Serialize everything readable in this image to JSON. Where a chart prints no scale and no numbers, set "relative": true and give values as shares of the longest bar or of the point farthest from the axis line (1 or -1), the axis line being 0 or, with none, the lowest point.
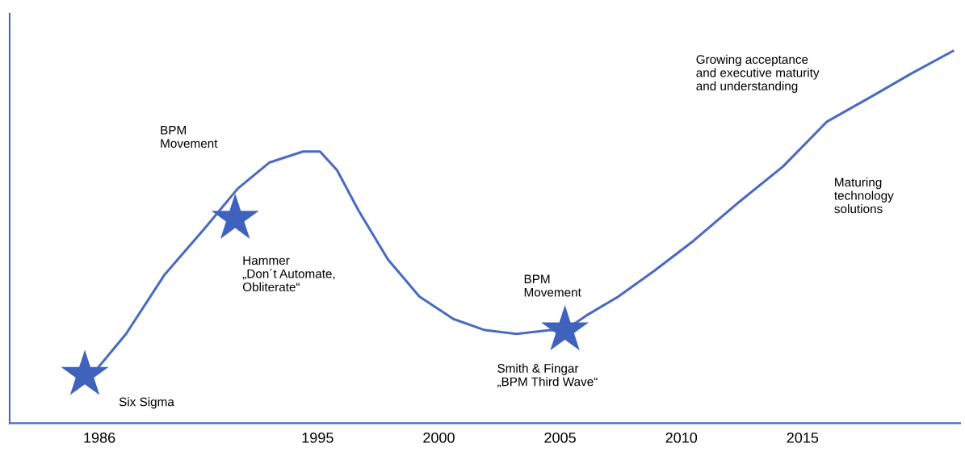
{
  "chart_data": {
    "type": "line",
    "relative": true,
    "grid": false,
    "legend": false,
    "tick_labels": "x",
    "xlim": [
      1982.3,
      2021.5
    ],
    "xticks": [
      1986,
      1995,
      2000,
      2005,
      2010,
      2015
    ],
    "series": [
      {
        "type": "line",
        "color": "#4a6bbf",
        "marker": "none",
        "x": [
          1985.7,
          1987.1,
          1988.7,
          1990.3,
          1991.7,
          1993.0,
          1994.4,
          1995.1,
          1995.8,
          1996.7,
          1997.9,
          1999.2,
          2000.6,
          2001.9,
          2003.2,
          2004.6,
          2005.2,
          2006.1,
          2007.4,
          2008.9,
          2010.5,
          2012.3,
          2014.2,
          2016.0,
          2017.9,
          2019.5,
          2021.2
        ],
        "values": [
          0.13,
          0.24,
          0.4,
          0.52,
          0.63,
          0.7,
          0.73,
          0.73,
          0.68,
          0.57,
          0.44,
          0.34,
          0.28,
          0.25,
          0.24,
          0.25,
          0.25,
          0.29,
          0.34,
          0.41,
          0.49,
          0.59,
          0.69,
          0.81,
          0.88,
          0.94,
          1.0
        ]
      },
      {
        "type": "scatter",
        "color": "#3f63bd",
        "marker": "star",
        "x": [
          1985.4,
          1991.6,
          2005.2
        ],
        "values": [
          0.13,
          0.55,
          0.25
        ]
      }
    ],
    "annotations": [
      "Six Sigma",
      "BPM\nMovement",
      "Hammer\n„Don´t Automate,\nObliterate“",
      "BPM\nMovement",
      "Smith & Fingar\n„BPM Third Wave“",
      "Growing acceptance\nand executive maturity\nand understanding",
      "Maturing\ntechnology\nsolutions"
    ]
  }
}
